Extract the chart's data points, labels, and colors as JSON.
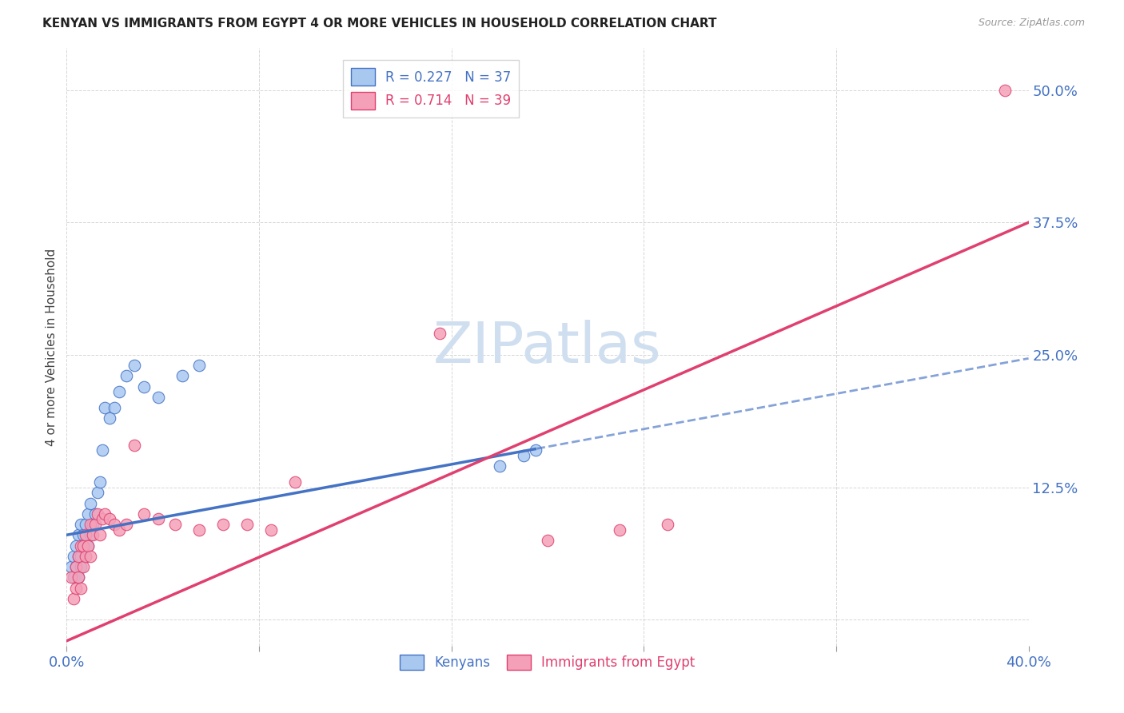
{
  "title": "KENYAN VS IMMIGRANTS FROM EGYPT 4 OR MORE VEHICLES IN HOUSEHOLD CORRELATION CHART",
  "source": "Source: ZipAtlas.com",
  "ylabel_label": "4 or more Vehicles in Household",
  "xlim": [
    0.0,
    0.4
  ],
  "ylim": [
    -0.025,
    0.54
  ],
  "xticks": [
    0.0,
    0.08,
    0.16,
    0.24,
    0.32,
    0.4
  ],
  "yticks": [
    0.0,
    0.125,
    0.25,
    0.375,
    0.5
  ],
  "kenyan_color": "#a8c8f0",
  "kenyan_line_color": "#4472c4",
  "egypt_color": "#f4a0b8",
  "egypt_line_color": "#e04070",
  "watermark_color": "#d0dff0",
  "grid_color": "#cccccc",
  "background_color": "#ffffff",
  "legend_kenyan_label": "R = 0.227   N = 37",
  "legend_egypt_label": "R = 0.714   N = 39",
  "kenyan_x": [
    0.002,
    0.003,
    0.003,
    0.004,
    0.004,
    0.005,
    0.005,
    0.005,
    0.006,
    0.006,
    0.006,
    0.007,
    0.007,
    0.008,
    0.008,
    0.009,
    0.009,
    0.01,
    0.01,
    0.011,
    0.012,
    0.013,
    0.014,
    0.015,
    0.016,
    0.018,
    0.02,
    0.022,
    0.025,
    0.028,
    0.032,
    0.038,
    0.048,
    0.055,
    0.18,
    0.19,
    0.195
  ],
  "kenyan_y": [
    0.05,
    0.04,
    0.06,
    0.05,
    0.07,
    0.04,
    0.06,
    0.08,
    0.05,
    0.06,
    0.09,
    0.07,
    0.08,
    0.06,
    0.09,
    0.07,
    0.1,
    0.08,
    0.11,
    0.09,
    0.1,
    0.12,
    0.13,
    0.16,
    0.2,
    0.19,
    0.2,
    0.215,
    0.23,
    0.24,
    0.22,
    0.21,
    0.23,
    0.24,
    0.145,
    0.155,
    0.16
  ],
  "egypt_x": [
    0.002,
    0.003,
    0.004,
    0.004,
    0.005,
    0.005,
    0.006,
    0.006,
    0.007,
    0.007,
    0.008,
    0.008,
    0.009,
    0.01,
    0.01,
    0.011,
    0.012,
    0.013,
    0.014,
    0.015,
    0.016,
    0.018,
    0.02,
    0.022,
    0.025,
    0.028,
    0.032,
    0.038,
    0.045,
    0.055,
    0.065,
    0.075,
    0.085,
    0.095,
    0.155,
    0.2,
    0.23,
    0.25,
    0.39
  ],
  "egypt_y": [
    0.04,
    0.02,
    0.03,
    0.05,
    0.04,
    0.06,
    0.03,
    0.07,
    0.05,
    0.07,
    0.06,
    0.08,
    0.07,
    0.06,
    0.09,
    0.08,
    0.09,
    0.1,
    0.08,
    0.095,
    0.1,
    0.095,
    0.09,
    0.085,
    0.09,
    0.165,
    0.1,
    0.095,
    0.09,
    0.085,
    0.09,
    0.09,
    0.085,
    0.13,
    0.27,
    0.075,
    0.085,
    0.09,
    0.5
  ]
}
